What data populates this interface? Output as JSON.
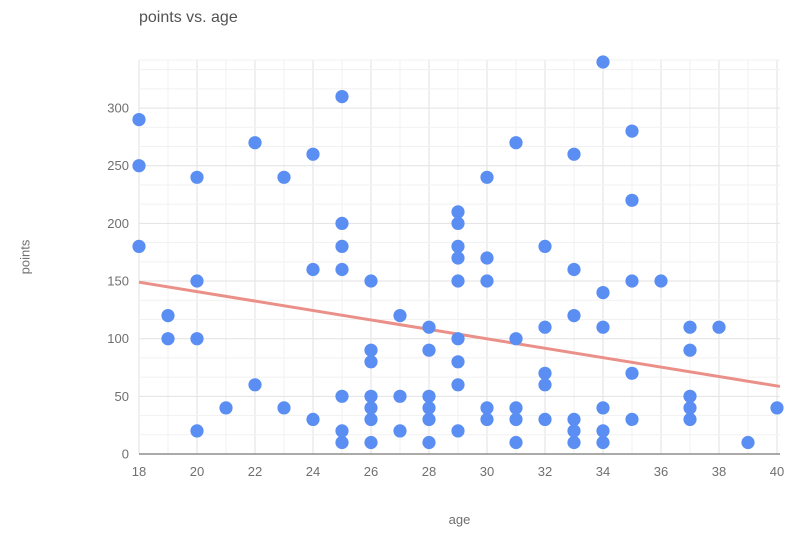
{
  "chart_data": {
    "type": "scatter",
    "title": "points vs. age",
    "xlabel": "age",
    "ylabel": "points",
    "legend": "none",
    "grid": true,
    "xlim": [
      18,
      40.1
    ],
    "ylim": [
      0,
      341.7
    ],
    "x_tick_labels": [
      18,
      20,
      22,
      24,
      26,
      28,
      30,
      32,
      34,
      36,
      38,
      40
    ],
    "x_minor_step": 1,
    "y_tick_labels": [
      0,
      50,
      100,
      150,
      200,
      250,
      300
    ],
    "y_major_step": 50,
    "y_minor_per_major": 2,
    "series": [
      {
        "name": "points",
        "color": "#5B8EF2",
        "points": [
          [
            18,
            290
          ],
          [
            18,
            250
          ],
          [
            18,
            180
          ],
          [
            19,
            120
          ],
          [
            19,
            100
          ],
          [
            20,
            240
          ],
          [
            20,
            150
          ],
          [
            20,
            100
          ],
          [
            20,
            20
          ],
          [
            21,
            40
          ],
          [
            22,
            270
          ],
          [
            22,
            60
          ],
          [
            23,
            240
          ],
          [
            23,
            40
          ],
          [
            24,
            260
          ],
          [
            24,
            160
          ],
          [
            24,
            30
          ],
          [
            25,
            310
          ],
          [
            25,
            200
          ],
          [
            25,
            180
          ],
          [
            25,
            160
          ],
          [
            25,
            50
          ],
          [
            25,
            20
          ],
          [
            25,
            10
          ],
          [
            26,
            150
          ],
          [
            26,
            90
          ],
          [
            26,
            80
          ],
          [
            26,
            50
          ],
          [
            26,
            40
          ],
          [
            26,
            30
          ],
          [
            26,
            10
          ],
          [
            27,
            120
          ],
          [
            27,
            50
          ],
          [
            27,
            20
          ],
          [
            28,
            110
          ],
          [
            28,
            90
          ],
          [
            28,
            50
          ],
          [
            28,
            40
          ],
          [
            28,
            30
          ],
          [
            28,
            10
          ],
          [
            29,
            210
          ],
          [
            29,
            200
          ],
          [
            29,
            180
          ],
          [
            29,
            170
          ],
          [
            29,
            150
          ],
          [
            29,
            100
          ],
          [
            29,
            80
          ],
          [
            29,
            60
          ],
          [
            29,
            20
          ],
          [
            30,
            240
          ],
          [
            30,
            170
          ],
          [
            30,
            150
          ],
          [
            30,
            40
          ],
          [
            30,
            30
          ],
          [
            31,
            270
          ],
          [
            31,
            100
          ],
          [
            31,
            40
          ],
          [
            31,
            30
          ],
          [
            31,
            10
          ],
          [
            32,
            180
          ],
          [
            32,
            110
          ],
          [
            32,
            70
          ],
          [
            32,
            60
          ],
          [
            32,
            30
          ],
          [
            33,
            260
          ],
          [
            33,
            160
          ],
          [
            33,
            120
          ],
          [
            33,
            30
          ],
          [
            33,
            20
          ],
          [
            33,
            10
          ],
          [
            34,
            340
          ],
          [
            34,
            140
          ],
          [
            34,
            110
          ],
          [
            34,
            40
          ],
          [
            34,
            20
          ],
          [
            34,
            10
          ],
          [
            35,
            280
          ],
          [
            35,
            220
          ],
          [
            35,
            150
          ],
          [
            35,
            70
          ],
          [
            35,
            30
          ],
          [
            36,
            150
          ],
          [
            37,
            110
          ],
          [
            37,
            90
          ],
          [
            37,
            50
          ],
          [
            37,
            40
          ],
          [
            37,
            30
          ],
          [
            38,
            110
          ],
          [
            39,
            10
          ],
          [
            40,
            40
          ]
        ]
      }
    ],
    "trendline": {
      "from": [
        18,
        149
      ],
      "to": [
        40.1,
        58.6
      ],
      "color": "#EA9088"
    }
  },
  "colors": {
    "background": "#ffffff",
    "point": "#5B8EF2",
    "trend": "#EA9088",
    "major_grid": "#E2E2E2",
    "minor_grid": "#F1F1F1",
    "baseline": "#777777",
    "title_text": "#535353",
    "tick_text": "#6F6F6F",
    "axis_title_text": "#6F6F6F"
  }
}
